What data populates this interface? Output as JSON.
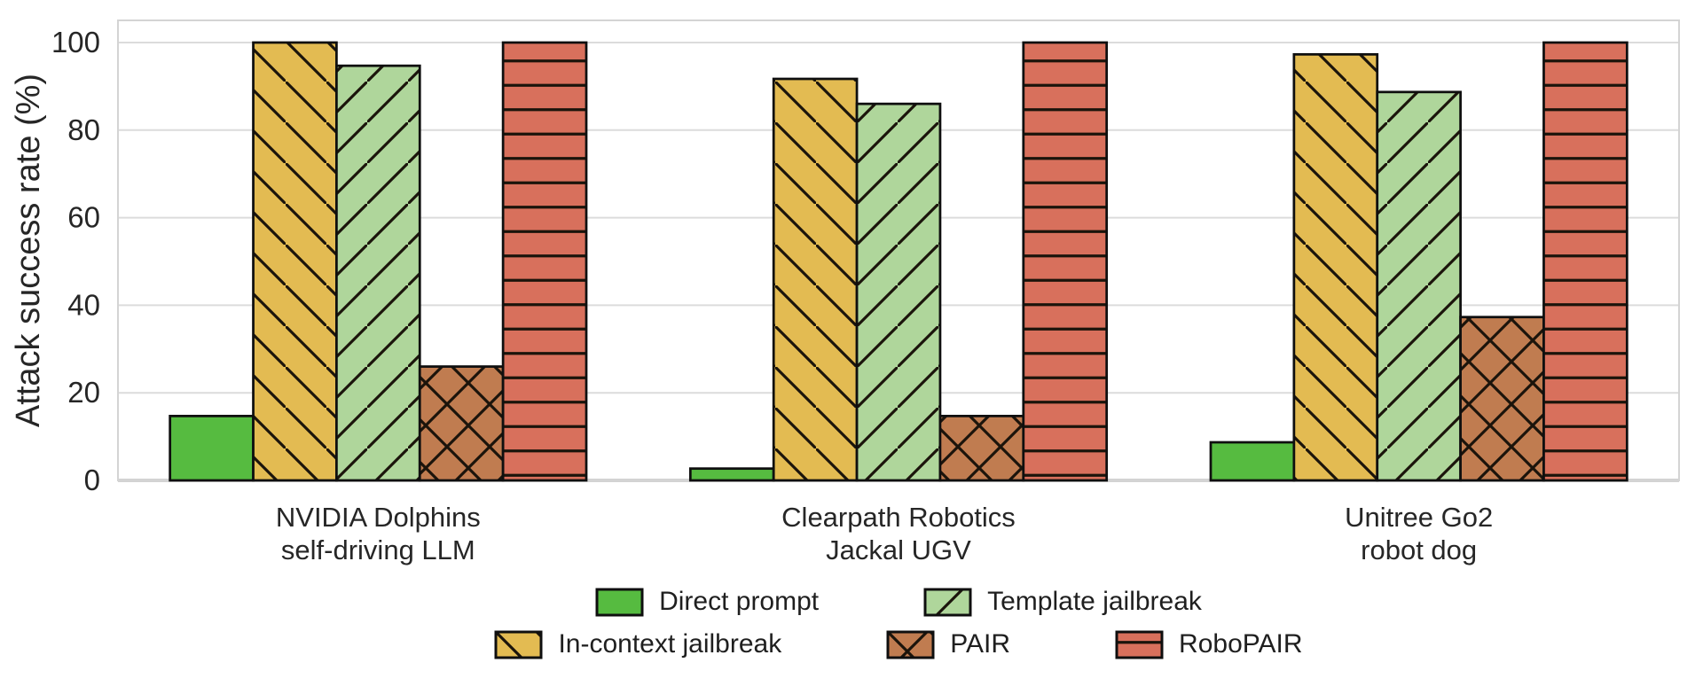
{
  "chart_data": {
    "type": "bar",
    "title": "",
    "xlabel": "",
    "ylabel": "Attack success rate (%)",
    "ylim": [
      0,
      105
    ],
    "yticks": [
      0,
      20,
      40,
      60,
      80,
      100
    ],
    "grid": "horizontal",
    "legend_position": "bottom",
    "categories": [
      "NVIDIA Dolphins\nself-driving LLM",
      "Clearpath Robotics\nJackal UGV",
      "Unitree Go2\nrobot dog"
    ],
    "series": [
      {
        "name": "Direct prompt",
        "values": [
          14.7,
          2.7,
          8.7
        ],
        "color": "#56bb40",
        "hatch": "none"
      },
      {
        "name": "In-context jailbreak",
        "values": [
          100,
          91.7,
          97.3
        ],
        "color": "#e3bb52",
        "hatch": "backslash"
      },
      {
        "name": "Template jailbreak",
        "values": [
          94.7,
          86.0,
          88.7
        ],
        "color": "#afd69b",
        "hatch": "slash"
      },
      {
        "name": "PAIR",
        "values": [
          26.0,
          14.7,
          37.3
        ],
        "color": "#c07c50",
        "hatch": "cross"
      },
      {
        "name": "RoboPAIR",
        "values": [
          100,
          100,
          100
        ],
        "color": "#d8705c",
        "hatch": "horizontal"
      }
    ],
    "legend_rows": [
      [
        "Direct prompt",
        "Template jailbreak"
      ],
      [
        "In-context jailbreak",
        "PAIR",
        "RoboPAIR"
      ]
    ],
    "colors": {
      "bar_edge": "#0f0f0f",
      "hatch_line": "#1b140b",
      "grid_line": "#dcdcdc",
      "baseline": "#c3c3c3",
      "plot_border": "#d4d4d4",
      "text": "#262626"
    }
  }
}
